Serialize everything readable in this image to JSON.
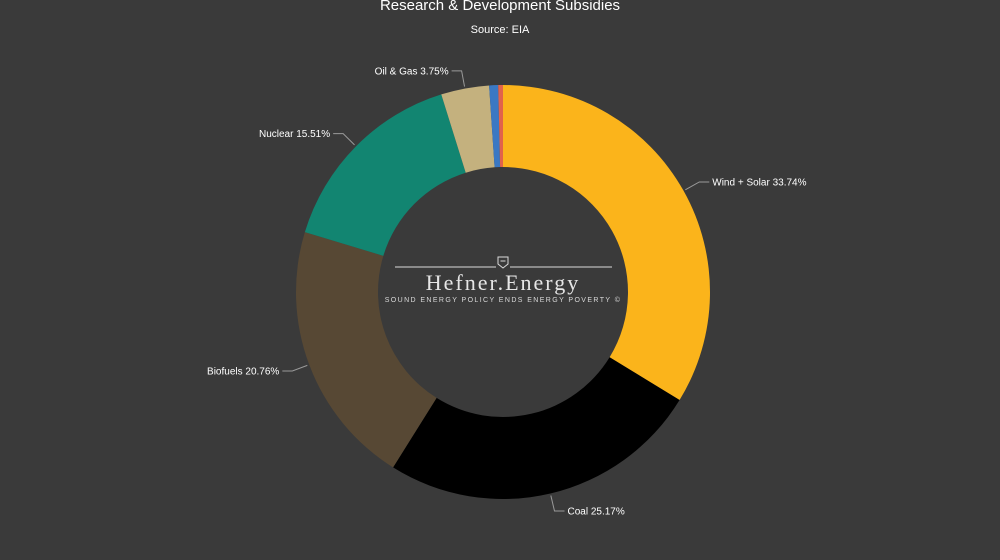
{
  "chart_data": {
    "type": "pie",
    "donut": true,
    "title": "Research & Development Subsidies",
    "subtitle": "Source: EIA",
    "slices": [
      {
        "label": "Wind + Solar",
        "value": 33.74,
        "display": "Wind + Solar 33.74%",
        "color": "#fbb41b",
        "side": "right"
      },
      {
        "label": "Coal",
        "value": 25.17,
        "display": "Coal 25.17%",
        "color": "#000000",
        "side": "right"
      },
      {
        "label": "Biofuels",
        "value": 20.76,
        "display": "Biofuels 20.76%",
        "color": "#574834",
        "side": "left"
      },
      {
        "label": "Nuclear",
        "value": 15.51,
        "display": "Nuclear 15.51%",
        "color": "#128571",
        "side": "left"
      },
      {
        "label": "Oil & Gas",
        "value": 3.75,
        "display": "Oil & Gas 3.75%",
        "color": "#c4b17e",
        "side": "left"
      },
      {
        "label": "",
        "value": 0.7,
        "display": "",
        "color": "#3a78c3",
        "side": "none"
      },
      {
        "label": "",
        "value": 0.37,
        "display": "",
        "color": "#e1634b",
        "side": "none"
      }
    ],
    "legend": "none",
    "data_labels": "outside with leader lines"
  },
  "watermark": {
    "name": "Hefner.Energy",
    "tagline": "SOUND ENERGY POLICY ENDS ENERGY POVERTY ©"
  },
  "colors": {
    "background": "#3a3a3a",
    "text": "#ffffff"
  }
}
